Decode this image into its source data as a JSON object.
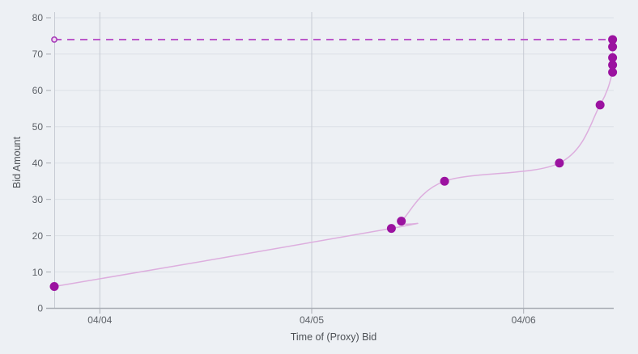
{
  "chart_data": {
    "type": "scatter",
    "title": "",
    "xlabel": "Time of (Proxy) Bid",
    "ylabel": "Bid Amount",
    "ylim": [
      0,
      80
    ],
    "y_ticks": [
      0,
      10,
      20,
      30,
      40,
      50,
      60,
      70,
      80
    ],
    "x_ticks": [
      {
        "label": "04/04",
        "d": 0
      },
      {
        "label": "04/05",
        "d": 1
      },
      {
        "label": "04/06",
        "d": 2
      }
    ],
    "xlim_days": [
      -0.215,
      2.425
    ],
    "grid": true,
    "legend": "none",
    "series": [
      {
        "name": "bids",
        "line_shape": "spline",
        "points": [
          {
            "time": "04/03 18:50",
            "d": -0.215,
            "bid": 6
          },
          {
            "time": "04/05 09:00",
            "d": 1.376,
            "bid": 22
          },
          {
            "time": "04/05 10:10",
            "d": 1.423,
            "bid": 24
          },
          {
            "time": "04/05 15:00",
            "d": 1.627,
            "bid": 35
          },
          {
            "time": "04/06 04:00",
            "d": 2.169,
            "bid": 40
          },
          {
            "time": "04/06 08:40",
            "d": 2.361,
            "bid": 56
          },
          {
            "time": "04/06 10:05",
            "d": 2.42,
            "bid": 65
          },
          {
            "time": "04/06 10:05",
            "d": 2.42,
            "bid": 67
          },
          {
            "time": "04/06 10:05",
            "d": 2.42,
            "bid": 69
          },
          {
            "time": "04/06 10:05",
            "d": 2.42,
            "bid": 72
          },
          {
            "time": "04/06 10:05",
            "d": 2.42,
            "bid": 74
          }
        ]
      }
    ],
    "max_proxy_bid_line": {
      "value": 74,
      "d_start": -0.215,
      "d_end": 2.42,
      "style": "dashed",
      "start_marker": "open-circle"
    }
  },
  "colors": {
    "background": "#edf0f4",
    "grid_horizontal": "#dce0e6",
    "grid_vertical": "#c7cbd3",
    "axis_line": "#a9adb4",
    "tick_label": "#5d6167",
    "axis_title": "#4d5156",
    "marker": "#9b12a0",
    "connector_line": "#ddaede",
    "proxy_dashed_line": "#bb58c9",
    "proxy_marker_fill": "#f0d8f2",
    "proxy_marker_stroke": "#a83fba"
  }
}
